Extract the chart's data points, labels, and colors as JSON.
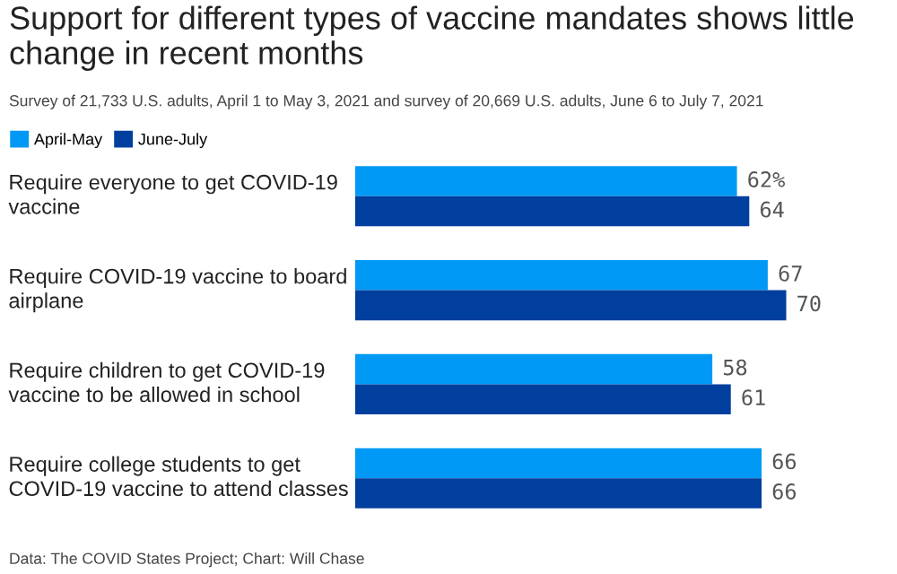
{
  "chart_data": {
    "type": "bar",
    "orientation": "horizontal",
    "title": "Support for different types of vaccine mandates shows little change in recent months",
    "subtitle": "Survey of 21,733 U.S. adults, April 1 to May 3, 2021 and survey of 20,669 U.S. adults, June 6 to July 7, 2021",
    "categories": [
      "Require everyone to get COVID-19 vaccine",
      "Require COVID-19 vaccine to board airplane",
      "Require children to get COVID-19 vaccine to be allowed in school",
      "Require college students to get COVID-19 vaccine to attend classes"
    ],
    "series": [
      {
        "name": "April-May",
        "color": "#0099f5",
        "values": [
          62,
          67,
          58,
          66
        ],
        "value_labels": [
          "62%",
          "67",
          "58",
          "66"
        ]
      },
      {
        "name": "June-July",
        "color": "#003f9e",
        "values": [
          64,
          70,
          61,
          66
        ],
        "value_labels": [
          "64",
          "70",
          "61",
          "66"
        ]
      }
    ],
    "legend": "top left",
    "annotations": [
      "Data: The COVID States Project; Chart: Will Chase"
    ]
  }
}
